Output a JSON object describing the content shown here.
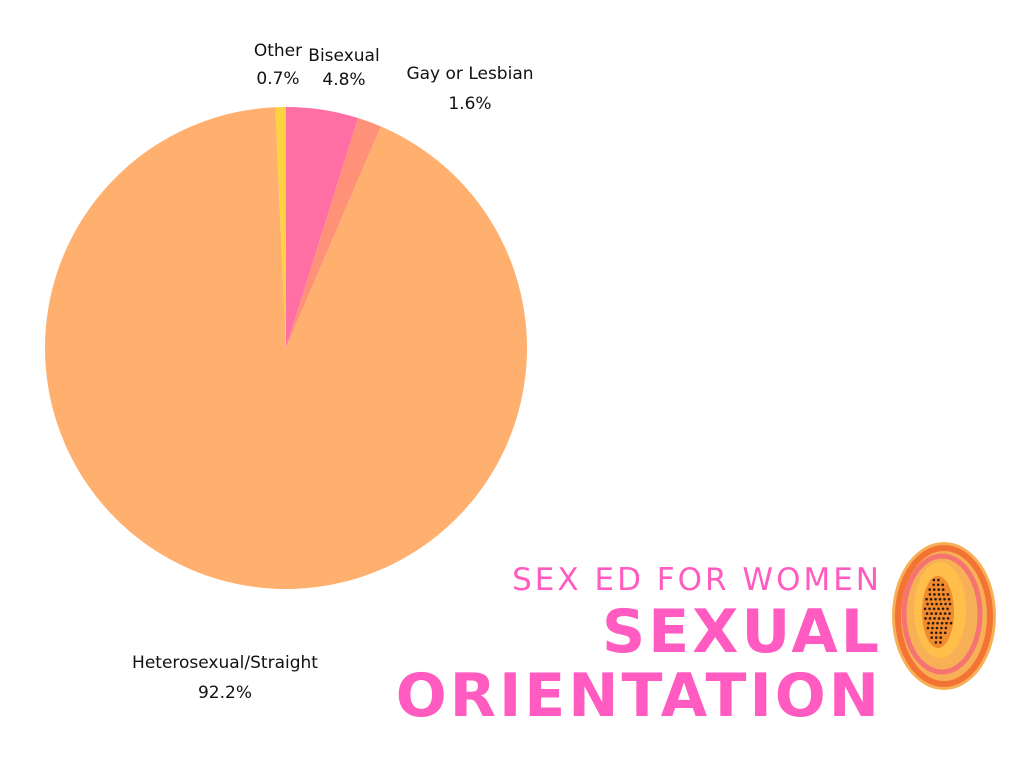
{
  "brand": {
    "subtitle": "SEX ED FOR WOMEN",
    "title_line1": "SEXUAL",
    "title_line2": "ORIENTATION",
    "accent_color": "#ff5bc0",
    "logo_icon": "papaya-icon"
  },
  "chart_data": {
    "type": "pie",
    "start_angle_deg": 0,
    "direction": "clockwise",
    "slices": [
      {
        "label": "Bisexual",
        "value": 4.8,
        "value_label": "4.8%",
        "color": "#ff6fa3"
      },
      {
        "label": "Gay or Lesbian",
        "value": 1.6,
        "value_label": "1.6%",
        "color": "#ff9178"
      },
      {
        "label": "Heterosexual/Straight",
        "value": 92.2,
        "value_label": "92.2%",
        "color": "#ffb06e"
      },
      {
        "label": "Other",
        "value": 0.7,
        "value_label": "0.7%",
        "color": "#ffd23f"
      }
    ],
    "legend": "none"
  }
}
